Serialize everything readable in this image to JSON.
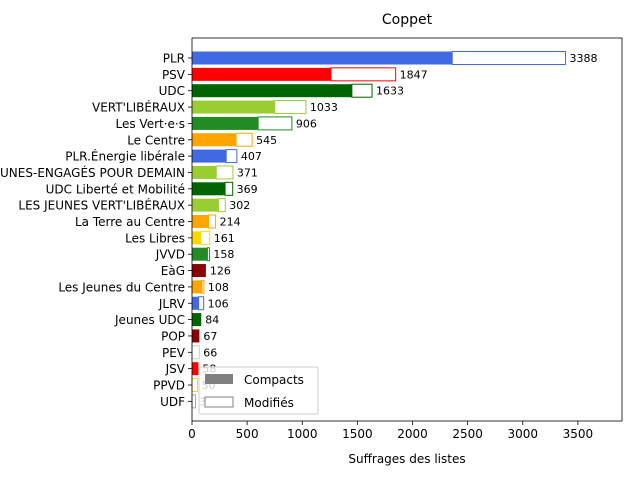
{
  "chart_data": {
    "type": "bar",
    "orientation": "horizontal",
    "stacked": true,
    "title": "Coppet",
    "xlabel": "Suffrages des listes",
    "ylabel": "",
    "xlim": [
      0,
      3900
    ],
    "xticks": [
      0,
      500,
      1000,
      1500,
      2000,
      2500,
      3000,
      3500
    ],
    "grid": false,
    "legend_position": "lower-left",
    "legend": [
      {
        "name": "Compacts",
        "style": "filled",
        "color": "#808080"
      },
      {
        "name": "Modifiés",
        "style": "outline",
        "color": "#808080"
      }
    ],
    "categories": [
      "PLR",
      "PSV",
      "UDC",
      "VERT'LIBÉRAUX",
      "Les Vert·e·s",
      "Le Centre",
      "PLR.Énergie libérale",
      "LES JEUNES-ENGAGÉS POUR DEMAIN",
      "UDC Liberté et Mobilité",
      "LES JEUNES VERT'LIBÉRAUX",
      "La Terre au Centre",
      "Les Libres",
      "JVVD",
      "EàG",
      "Les Jeunes du Centre",
      "JLRV",
      "Jeunes UDC",
      "POP",
      "PEV",
      "JSV",
      "PPVD",
      "UDF"
    ],
    "colors": [
      "#4169e1",
      "#ff0000",
      "#006400",
      "#9acd32",
      "#228b22",
      "#ffa500",
      "#4169e1",
      "#9acd32",
      "#006400",
      "#9acd32",
      "#ffa500",
      "#ffd700",
      "#228b22",
      "#8b0000",
      "#ffa500",
      "#4169e1",
      "#006400",
      "#8b0000",
      "#cccccc",
      "#ff0000",
      "#ffd700",
      "#aaaaaa"
    ],
    "series": [
      {
        "name": "Compacts",
        "values": [
          2360,
          1260,
          1450,
          750,
          600,
          400,
          310,
          220,
          300,
          240,
          150,
          80,
          140,
          126,
          90,
          60,
          84,
          67,
          0,
          58,
          0,
          0
        ]
      },
      {
        "name": "Modifiés",
        "values": [
          1028,
          587,
          183,
          283,
          306,
          145,
          97,
          151,
          69,
          62,
          64,
          81,
          18,
          0,
          18,
          46,
          0,
          0,
          66,
          0,
          50,
          32
        ]
      }
    ],
    "totals": [
      3388,
      1847,
      1633,
      1033,
      906,
      545,
      407,
      371,
      369,
      302,
      214,
      161,
      158,
      126,
      108,
      106,
      84,
      67,
      66,
      58,
      50,
      32
    ]
  }
}
